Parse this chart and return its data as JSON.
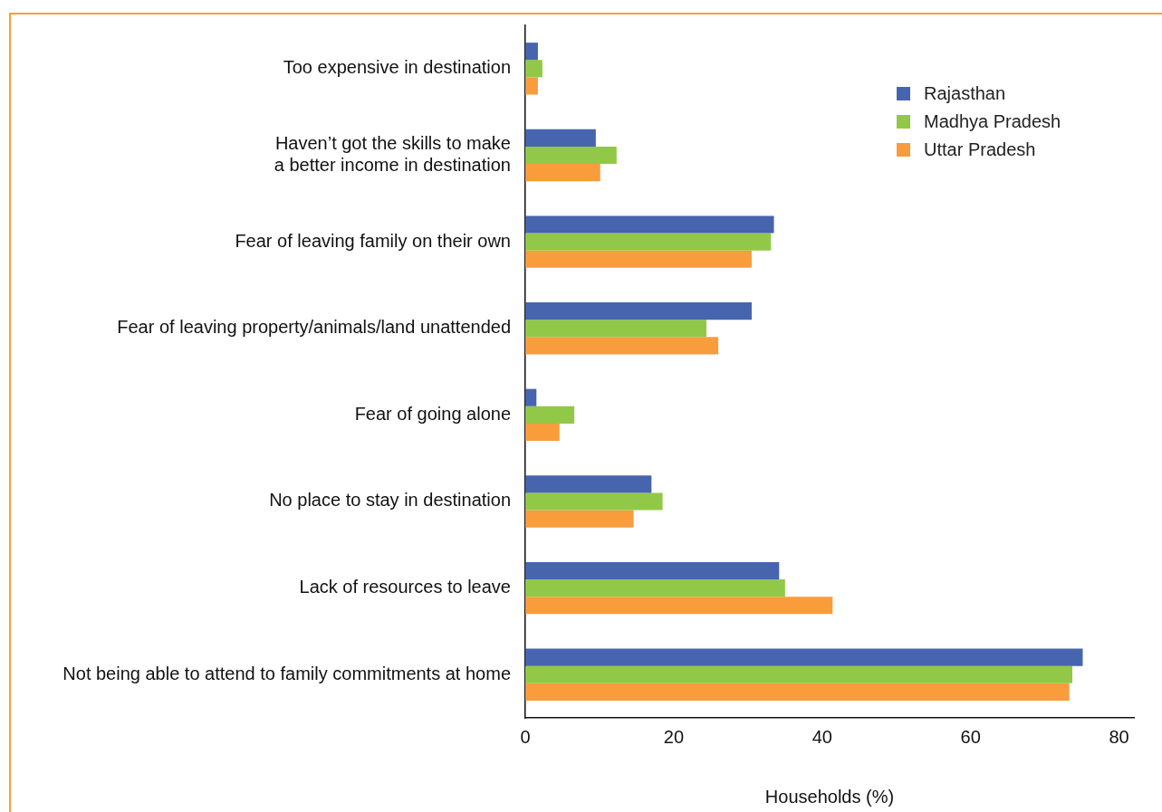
{
  "chart_data": {
    "type": "bar",
    "orientation": "horizontal",
    "xlabel": "Households (%)",
    "categories": [
      "Too expensive in destination",
      "Haven’t got the skills to make a better income in destination",
      "Fear of leaving family on their own",
      "Fear of leaving property/animals/land unattended",
      "Fear of going alone",
      "No place to stay in destination",
      "Lack of resources to leave",
      "Not being able to attend to family commitments at home"
    ],
    "series": [
      {
        "name": "Rajasthan",
        "color": "#4764ae",
        "values": [
          1.7,
          9.5,
          33.5,
          30.5,
          1.5,
          17,
          34.2,
          75.1
        ]
      },
      {
        "name": "Madhya Pradesh",
        "color": "#92c847",
        "values": [
          2.3,
          12.3,
          33.1,
          24.4,
          6.6,
          18.5,
          35,
          73.7
        ]
      },
      {
        "name": "Uttar Pradesh",
        "color": "#f89c3c",
        "values": [
          1.7,
          10.1,
          30.5,
          26,
          4.6,
          14.6,
          41.4,
          73.3
        ]
      }
    ],
    "xlim": [
      0,
      82
    ],
    "xticks": [
      0,
      20,
      40,
      60,
      80
    ],
    "grid": false,
    "legend": "top right"
  }
}
